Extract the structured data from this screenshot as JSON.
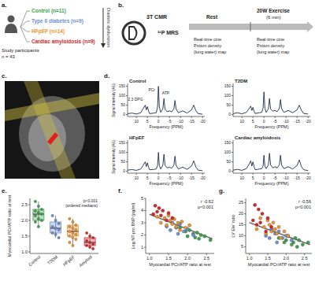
{
  "figure": {
    "panel_labels": [
      "a.",
      "b.",
      "c.",
      "d.",
      "e.",
      "f.",
      "g."
    ],
    "study": {
      "title": "Study participants",
      "n": "n = 43",
      "arrow_label": "Diastolic dysfunction",
      "groups": [
        {
          "label": "Control (n=11)",
          "color": "#3fa34d"
        },
        {
          "label": "Type II diabetes (n=9)",
          "color": "#6d8fd4"
        },
        {
          "label": "HFpEF (n=14)",
          "color": "#f0962e"
        },
        {
          "label": "Cardiac amyloidosis (n=9)",
          "color": "#d7262b"
        }
      ]
    },
    "protocol": {
      "scanner": "3T CMR",
      "mrs": "³¹P MRS",
      "rest": {
        "label": "Rest",
        "steps": [
          "Real-time cine",
          "Proton density",
          "(lung water) map"
        ]
      },
      "exercise": {
        "label": "20W Exercise",
        "duration": "(6 min)",
        "steps": [
          "Real-time cine",
          "Proton density",
          "(lung water) map"
        ]
      }
    }
  },
  "chart_data": [
    {
      "type": "line",
      "title": "Control",
      "color": "#1b2a4a",
      "x": [
        14,
        12,
        10,
        8,
        7,
        6,
        5.5,
        5,
        4.5,
        4,
        2,
        1,
        0.4,
        0,
        -0.4,
        -1,
        -2,
        -2.5,
        -3,
        -4,
        -5,
        -6,
        -7,
        -7.5,
        -8,
        -9,
        -11,
        -13,
        -15,
        -16,
        -17,
        -18,
        -20
      ],
      "values": [
        5,
        8,
        3,
        10,
        30,
        50,
        25,
        42,
        20,
        5,
        8,
        10,
        40,
        150,
        40,
        12,
        30,
        85,
        28,
        15,
        20,
        15,
        30,
        75,
        30,
        10,
        20,
        8,
        25,
        50,
        20,
        5,
        2
      ],
      "xlim": [
        14,
        -21
      ],
      "xticks": [
        10,
        5,
        0,
        -5,
        -10,
        -15,
        -20
      ],
      "ylim": [
        -10,
        165
      ],
      "yticks": [
        0,
        50,
        100,
        150
      ],
      "x_label": "Frequency (PPM)",
      "y_label": "Signal intensity (AU)",
      "annotations": [
        {
          "text": "2,3 DPG",
          "x": 7,
          "y": 75
        },
        {
          "text": "PCr",
          "x": 1.5,
          "y": 125
        },
        {
          "text": "ATP",
          "x": -5,
          "y": 105
        }
      ]
    },
    {
      "type": "line",
      "title": "T2DM",
      "color": "#1b2a4a",
      "x": [
        14,
        12,
        10,
        8,
        7,
        6,
        5.5,
        5,
        4.5,
        4,
        2,
        1,
        0.4,
        0,
        -0.4,
        -1,
        -2,
        -2.5,
        -3,
        -4,
        -5,
        -6,
        -7,
        -7.5,
        -8,
        -9,
        -11,
        -13,
        -15,
        -16,
        -17,
        -18,
        -20
      ],
      "values": [
        5,
        10,
        4,
        12,
        28,
        45,
        22,
        38,
        18,
        6,
        10,
        12,
        35,
        120,
        35,
        12,
        30,
        85,
        30,
        18,
        22,
        16,
        32,
        80,
        32,
        12,
        22,
        10,
        25,
        50,
        22,
        6,
        3
      ],
      "xlim": [
        14,
        -21
      ],
      "xticks": [
        10,
        5,
        0,
        -5,
        -10,
        -15,
        -20
      ],
      "ylim": [
        -10,
        165
      ],
      "yticks": [
        0,
        50,
        100,
        150
      ],
      "x_label": "Frequency (PPM)"
    },
    {
      "type": "line",
      "title": "HFpEF",
      "color": "#1b2a4a",
      "x": [
        14,
        12,
        10,
        8,
        7,
        6,
        5.5,
        5,
        4.5,
        4,
        2,
        1,
        0.4,
        0,
        -0.4,
        -1,
        -2,
        -2.5,
        -3,
        -4,
        -5,
        -6,
        -7,
        -7.5,
        -8,
        -9,
        -11,
        -13,
        -15,
        -16,
        -17,
        -18,
        -20
      ],
      "values": [
        6,
        9,
        5,
        12,
        30,
        50,
        25,
        45,
        22,
        8,
        10,
        12,
        30,
        100,
        30,
        12,
        32,
        90,
        32,
        18,
        22,
        16,
        32,
        80,
        32,
        12,
        22,
        10,
        28,
        55,
        22,
        6,
        3
      ],
      "xlim": [
        14,
        -21
      ],
      "xticks": [
        10,
        5,
        0,
        -5,
        -10,
        -15,
        -20
      ],
      "ylim": [
        -10,
        165
      ],
      "yticks": [
        0,
        50,
        100,
        150
      ],
      "x_label": "Frequency (PPM)",
      "y_label": "Signal intensity (AU)"
    },
    {
      "type": "line",
      "title": "Cardiac amyloidosis",
      "color": "#1b2a4a",
      "x": [
        14,
        12,
        10,
        8,
        7,
        6,
        5.5,
        5,
        4.5,
        4,
        2,
        1,
        0.4,
        0,
        -0.4,
        -1,
        -2,
        -2.5,
        -3,
        -4,
        -5,
        -6,
        -7,
        -7.5,
        -8,
        -9,
        -11,
        -13,
        -15,
        -16,
        -17,
        -18,
        -20
      ],
      "values": [
        6,
        10,
        5,
        14,
        32,
        55,
        28,
        50,
        25,
        8,
        12,
        14,
        28,
        85,
        28,
        14,
        34,
        95,
        34,
        18,
        24,
        18,
        34,
        85,
        34,
        14,
        24,
        12,
        30,
        60,
        24,
        8,
        4
      ],
      "xlim": [
        14,
        -21
      ],
      "xticks": [
        10,
        5,
        0,
        -5,
        -10,
        -15,
        -20
      ],
      "ylim": [
        -10,
        165
      ],
      "yticks": [
        0,
        50,
        100,
        150
      ],
      "x_label": "Frequency (PPM)"
    },
    {
      "type": "box",
      "categories": [
        "Control",
        "T2DM",
        "HFpEF",
        "Amyloid"
      ],
      "colors": [
        "#3fa34d",
        "#6d8fd4",
        "#f0962e",
        "#d7262b"
      ],
      "boxes": [
        {
          "whisker_low": 1.8,
          "q1": 2.0,
          "median": 2.2,
          "q3": 2.35,
          "whisker_high": 2.6,
          "points": [
            2.6,
            2.45,
            2.35,
            2.3,
            2.25,
            2.2,
            2.15,
            2.05,
            2.0,
            1.95,
            1.8
          ]
        },
        {
          "whisker_low": 1.45,
          "q1": 1.6,
          "median": 1.75,
          "q3": 1.95,
          "whisker_high": 2.15,
          "points": [
            2.15,
            2.0,
            1.9,
            1.8,
            1.75,
            1.7,
            1.6,
            1.55,
            1.45
          ]
        },
        {
          "whisker_low": 1.2,
          "q1": 1.5,
          "median": 1.65,
          "q3": 1.85,
          "whisker_high": 2.05,
          "points": [
            2.05,
            1.95,
            1.85,
            1.8,
            1.75,
            1.7,
            1.65,
            1.6,
            1.55,
            1.5,
            1.45,
            1.4,
            1.3,
            1.2
          ]
        },
        {
          "whisker_low": 1.1,
          "q1": 1.2,
          "median": 1.3,
          "q3": 1.45,
          "whisker_high": 1.6,
          "points": [
            1.6,
            1.5,
            1.45,
            1.35,
            1.3,
            1.25,
            1.2,
            1.15,
            1.1
          ]
        }
      ],
      "ylim": [
        0.95,
        2.7
      ],
      "yticks": [
        {
          "value": 1,
          "label": "1.0"
        },
        {
          "value": 1.5,
          "label": "1.5"
        },
        {
          "value": 2,
          "label": "2.0"
        },
        {
          "value": 2.5,
          "label": "2.5"
        }
      ],
      "y_label": "Myocardial PCr/ATP ratio at rest",
      "annotations": [
        "p<0.001",
        "(ordered medians)"
      ]
    },
    {
      "type": "scatter",
      "series": [
        {
          "color": "#3fa34d",
          "x": [
            2.6,
            2.45,
            2.35,
            2.3,
            2.25,
            2.2,
            2.15,
            2.05,
            2.0,
            1.95,
            1.8
          ],
          "values": [
            1.6,
            1.9,
            2.0,
            1.7,
            2.2,
            1.8,
            2.1,
            2.4,
            1.9,
            2.3,
            2.6
          ]
        },
        {
          "color": "#6d8fd4",
          "x": [
            2.15,
            2.0,
            1.9,
            1.8,
            1.75,
            1.7,
            1.6,
            1.55,
            1.45
          ],
          "values": [
            2.0,
            2.5,
            2.3,
            2.9,
            2.1,
            2.6,
            3.0,
            2.4,
            2.7
          ]
        },
        {
          "color": "#f0962e",
          "x": [
            2.05,
            1.95,
            1.85,
            1.8,
            1.75,
            1.7,
            1.65,
            1.6,
            1.55,
            1.5,
            1.45,
            1.4,
            1.3,
            1.2
          ],
          "values": [
            2.8,
            2.6,
            3.1,
            2.4,
            3.0,
            2.7,
            3.3,
            2.9,
            3.2,
            3.6,
            2.8,
            3.4,
            3.0,
            3.5
          ]
        },
        {
          "color": "#d7262b",
          "x": [
            1.6,
            1.5,
            1.45,
            1.35,
            1.3,
            1.25,
            1.2,
            1.15,
            1.1
          ],
          "values": [
            3.4,
            3.8,
            3.2,
            4.0,
            3.6,
            4.2,
            3.9,
            4.4,
            3.7
          ]
        }
      ],
      "fit": {
        "x": [
          1.0,
          2.65
        ],
        "values": [
          3.7,
          1.7
        ]
      },
      "xlim": [
        0.9,
        2.7
      ],
      "xticks": [
        {
          "value": 1,
          "label": "1.0"
        },
        {
          "value": 1.5,
          "label": "1.5"
        },
        {
          "value": 2,
          "label": "2.0"
        },
        {
          "value": 2.5,
          "label": "2.5"
        }
      ],
      "ylim": [
        0.5,
        5
      ],
      "yticks": [
        1,
        2,
        3,
        4,
        5
      ],
      "x_label": "Myocardial PCr/ATP ratio at rest",
      "y_label": "Log NT-pro BNP (pg/ml)",
      "annotations": [
        "r -0.62",
        "p<0.001"
      ]
    },
    {
      "type": "scatter",
      "series": [
        {
          "color": "#3fa34d",
          "x": [
            2.6,
            2.45,
            2.35,
            2.3,
            2.25,
            2.2,
            2.15,
            2.05,
            2.0,
            1.95,
            1.8
          ],
          "values": [
            7,
            6,
            8,
            5,
            9,
            7,
            6,
            10,
            8,
            7,
            9
          ]
        },
        {
          "color": "#6d8fd4",
          "x": [
            2.15,
            2.0,
            1.9,
            1.8,
            1.75,
            1.7,
            1.6,
            1.55,
            1.45
          ],
          "values": [
            8,
            10,
            9,
            12,
            7,
            11,
            13,
            9,
            10
          ]
        },
        {
          "color": "#f0962e",
          "x": [
            2.05,
            1.95,
            1.85,
            1.8,
            1.75,
            1.7,
            1.65,
            1.6,
            1.55,
            1.5,
            1.45,
            1.4,
            1.3,
            1.2
          ],
          "values": [
            10,
            12,
            9,
            14,
            11,
            13,
            16,
            12,
            15,
            17,
            11,
            14,
            18,
            13
          ]
        },
        {
          "color": "#d7262b",
          "x": [
            1.6,
            1.5,
            1.45,
            1.35,
            1.3,
            1.25,
            1.2,
            1.15,
            1.1
          ],
          "values": [
            14,
            18,
            12,
            20,
            16,
            22,
            15,
            24,
            17
          ]
        }
      ],
      "fit": {
        "x": [
          1.0,
          2.65
        ],
        "values": [
          16,
          6
        ]
      },
      "xlim": [
        0.9,
        2.7
      ],
      "xticks": [
        {
          "value": 1,
          "label": "1.0"
        },
        {
          "value": 1.5,
          "label": "1.5"
        },
        {
          "value": 2,
          "label": "2.0"
        },
        {
          "value": 2.5,
          "label": "2.5"
        }
      ],
      "ylim": [
        2,
        27
      ],
      "yticks": [
        5,
        10,
        15,
        20,
        25
      ],
      "x_label": "Myocardial PCr/ATP ratio at rest",
      "y_label": "LV E/e' ratio",
      "annotations": [
        "r -0.56",
        "p<0.001"
      ]
    }
  ]
}
